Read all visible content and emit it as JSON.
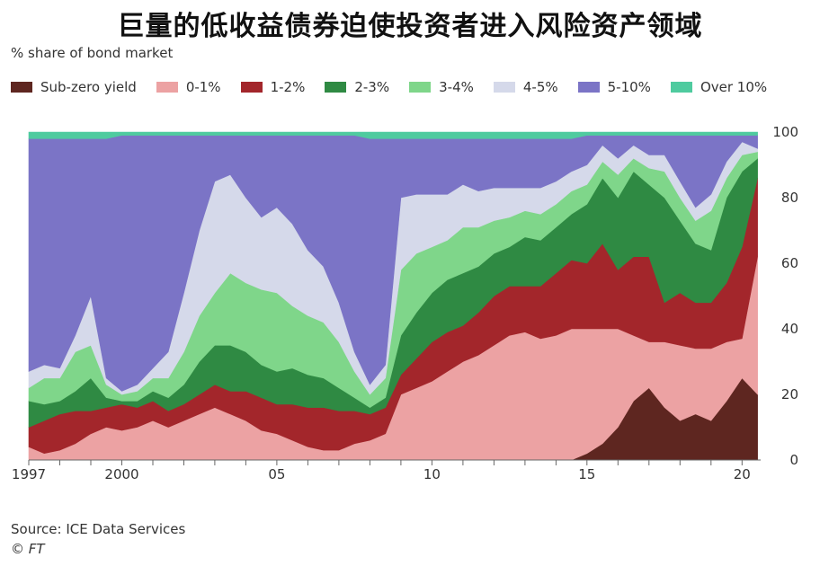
{
  "title": "巨量的低收益债券迫使投资者进入风险资产领域",
  "subtitle": "% share of bond market",
  "source": "Source: ICE Data Services",
  "credit": "© FT",
  "legend": [
    {
      "label": "Sub-zero yield",
      "color": "#5e2620"
    },
    {
      "label": "0-1%",
      "color": "#eca2a3"
    },
    {
      "label": "1-2%",
      "color": "#a3262b"
    },
    {
      "label": "2-3%",
      "color": "#2f8a43"
    },
    {
      "label": "3-4%",
      "color": "#7fd68a"
    },
    {
      "label": "4-5%",
      "color": "#d5d9ea"
    },
    {
      "label": "5-10%",
      "color": "#7b74c6"
    },
    {
      "label": "Over 10%",
      "color": "#4fcb9f"
    }
  ],
  "chart_data": {
    "type": "area",
    "stacked": true,
    "ylabel": "% share of bond market",
    "ylim": [
      0,
      100
    ],
    "yticks": [
      0,
      20,
      40,
      60,
      80,
      100
    ],
    "xlim": [
      1997.0,
      2020.6
    ],
    "xticks": [
      {
        "value": 1997,
        "label": "1997"
      },
      {
        "value": 2000,
        "label": "2000"
      },
      {
        "value": 2005,
        "label": "05"
      },
      {
        "value": 2010,
        "label": "10"
      },
      {
        "value": 2015,
        "label": "15"
      },
      {
        "value": 2020,
        "label": "20"
      }
    ],
    "x": [
      1997.0,
      1997.5,
      1998.0,
      1998.5,
      1999.0,
      1999.5,
      2000.0,
      2000.5,
      2001.0,
      2001.5,
      2002.0,
      2002.5,
      2003.0,
      2003.5,
      2004.0,
      2004.5,
      2005.0,
      2005.5,
      2006.0,
      2006.5,
      2007.0,
      2007.5,
      2008.0,
      2008.5,
      2009.0,
      2009.5,
      2010.0,
      2010.5,
      2011.0,
      2011.5,
      2012.0,
      2012.5,
      2013.0,
      2013.5,
      2014.0,
      2014.5,
      2015.0,
      2015.5,
      2016.0,
      2016.5,
      2017.0,
      2017.5,
      2018.0,
      2018.5,
      2019.0,
      2019.5,
      2020.0,
      2020.5
    ],
    "series": [
      {
        "name": "Sub-zero yield",
        "values": [
          0,
          0,
          0,
          0,
          0,
          0,
          0,
          0,
          0,
          0,
          0,
          0,
          0,
          0,
          0,
          0,
          0,
          0,
          0,
          0,
          0,
          0,
          0,
          0,
          0,
          0,
          0,
          0,
          0,
          0,
          0,
          0,
          0,
          0,
          0,
          0,
          2,
          5,
          10,
          18,
          22,
          16,
          12,
          14,
          12,
          18,
          25,
          20
        ]
      },
      {
        "name": "0-1%",
        "values": [
          4,
          2,
          3,
          5,
          8,
          10,
          9,
          10,
          12,
          10,
          12,
          14,
          16,
          14,
          12,
          9,
          8,
          6,
          4,
          3,
          3,
          5,
          6,
          8,
          20,
          22,
          24,
          27,
          30,
          32,
          35,
          38,
          39,
          37,
          38,
          40,
          38,
          35,
          30,
          20,
          14,
          20,
          23,
          20,
          22,
          18,
          12,
          42
        ]
      },
      {
        "name": "1-2%",
        "values": [
          6,
          10,
          11,
          10,
          7,
          6,
          8,
          6,
          6,
          5,
          5,
          6,
          7,
          7,
          9,
          10,
          9,
          11,
          12,
          13,
          12,
          10,
          8,
          8,
          6,
          9,
          12,
          12,
          11,
          13,
          15,
          15,
          14,
          16,
          19,
          21,
          20,
          26,
          18,
          24,
          26,
          12,
          16,
          14,
          14,
          18,
          28,
          24
        ]
      },
      {
        "name": "2-3%",
        "values": [
          8,
          5,
          4,
          6,
          10,
          3,
          1,
          2,
          3,
          4,
          6,
          10,
          12,
          14,
          12,
          10,
          10,
          11,
          10,
          9,
          7,
          4,
          2,
          3,
          12,
          14,
          15,
          16,
          16,
          14,
          13,
          12,
          15,
          14,
          14,
          14,
          18,
          20,
          22,
          26,
          22,
          32,
          22,
          18,
          16,
          26,
          23,
          6
        ]
      },
      {
        "name": "3-4%",
        "values": [
          4,
          8,
          7,
          12,
          10,
          4,
          2,
          3,
          4,
          6,
          10,
          14,
          16,
          22,
          21,
          23,
          24,
          19,
          18,
          17,
          14,
          8,
          4,
          6,
          20,
          18,
          14,
          12,
          14,
          12,
          10,
          9,
          8,
          8,
          7,
          7,
          6,
          5,
          7,
          4,
          5,
          8,
          7,
          7,
          12,
          6,
          5,
          2
        ]
      },
      {
        "name": "4-5%",
        "values": [
          5,
          4,
          3,
          5,
          15,
          2,
          1,
          2,
          3,
          8,
          18,
          26,
          34,
          30,
          26,
          22,
          26,
          25,
          20,
          17,
          12,
          6,
          3,
          4,
          22,
          18,
          16,
          14,
          13,
          11,
          10,
          9,
          7,
          8,
          7,
          6,
          6,
          5,
          5,
          4,
          4,
          5,
          5,
          4,
          5,
          5,
          4,
          1
        ]
      },
      {
        "name": "5-10%",
        "values": [
          71,
          69,
          70,
          60,
          48,
          73,
          78,
          76,
          71,
          66,
          48,
          29,
          14,
          12,
          19,
          25,
          22,
          27,
          35,
          40,
          51,
          66,
          75,
          69,
          18,
          17,
          17,
          17,
          14,
          16,
          15,
          15,
          15,
          15,
          13,
          10,
          9,
          3,
          7,
          3,
          6,
          6,
          14,
          22,
          18,
          8,
          2,
          4
        ]
      },
      {
        "name": "Over 10%",
        "values": [
          2,
          2,
          2,
          2,
          2,
          2,
          1,
          1,
          1,
          1,
          1,
          1,
          1,
          1,
          1,
          1,
          1,
          1,
          1,
          1,
          1,
          1,
          2,
          2,
          2,
          2,
          2,
          2,
          2,
          2,
          2,
          2,
          2,
          2,
          2,
          2,
          1,
          1,
          1,
          1,
          1,
          1,
          1,
          1,
          1,
          1,
          1,
          1
        ]
      }
    ]
  }
}
